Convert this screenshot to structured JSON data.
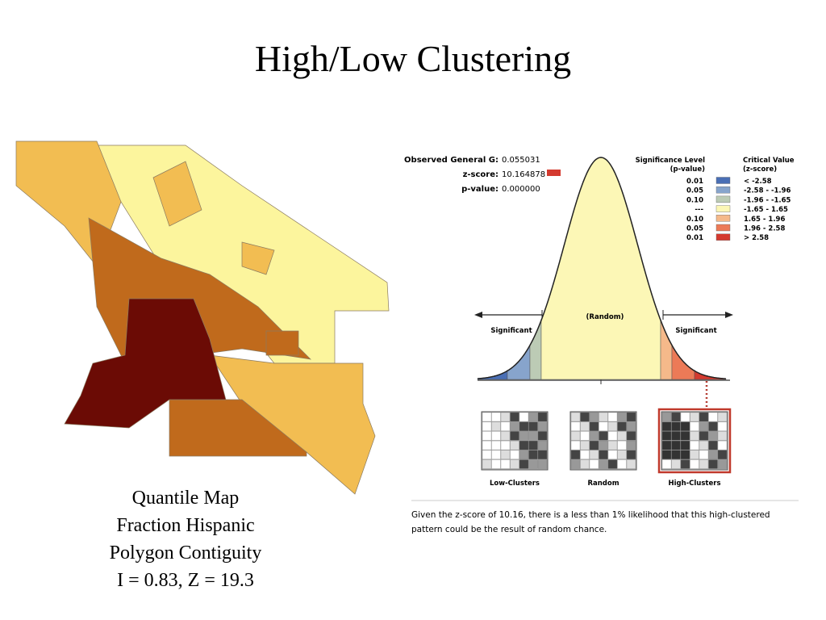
{
  "title": "High/Low Clustering",
  "map_caption": [
    "Quantile Map",
    "Fraction Hispanic",
    "Polygon Contiguity",
    "I = 0.83, Z = 19.3"
  ],
  "report": {
    "stats": [
      {
        "label": "Observed General G:",
        "value": "0.055031"
      },
      {
        "label": "z-score:",
        "value": "10.164878"
      },
      {
        "label": "p-value:",
        "value": "0.000000"
      }
    ],
    "legend": {
      "p_header": [
        "Significance Level",
        "(p-value)"
      ],
      "z_header": [
        "Critical Value",
        "(z-score)"
      ],
      "rows": [
        {
          "p": "0.01",
          "z": "< -2.58",
          "color": "#4a6fb5"
        },
        {
          "p": "0.05",
          "z": "-2.58 - -1.96",
          "color": "#87a4cc"
        },
        {
          "p": "0.10",
          "z": "-1.96 - -1.65",
          "color": "#bccbb5"
        },
        {
          "p": "---",
          "z": "-1.65 - 1.65",
          "color": "#fcf7b6"
        },
        {
          "p": "0.10",
          "z": "1.65 - 1.96",
          "color": "#f5b98a"
        },
        {
          "p": "0.05",
          "z": "1.96 - 2.58",
          "color": "#ec7a57"
        },
        {
          "p": "0.01",
          "z": "> 2.58",
          "color": "#d43a2f"
        }
      ]
    },
    "curve_labels": {
      "left": "Significant",
      "center": "(Random)",
      "right": "Significant"
    },
    "thumbnails": [
      "Low-Clusters",
      "Random",
      "High-Clusters"
    ],
    "note": "Given the z-score of 10.16, there is a less than 1% likelihood that this high-clustered pattern could be the result of random chance."
  }
}
